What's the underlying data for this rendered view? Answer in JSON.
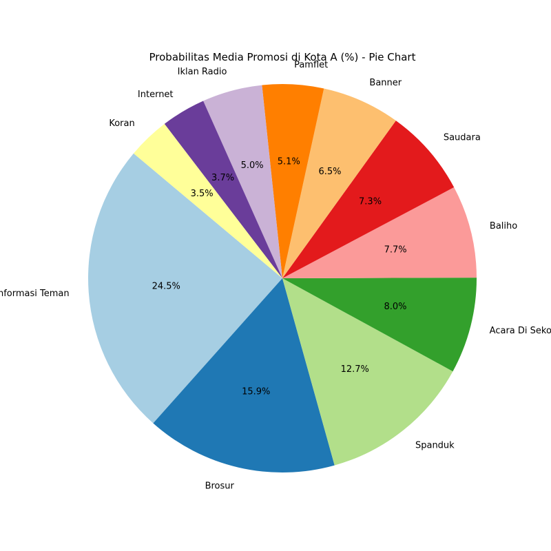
{
  "chart_data": {
    "type": "pie",
    "title": "Probabilitas Media Promosi di Kota A (%) - Pie Chart",
    "start_angle_deg": 140,
    "direction": "counterclockwise",
    "slices": [
      {
        "label": "Informasi Teman",
        "value": 24.5,
        "pct_text": "24.5%",
        "color": "#a6cee3"
      },
      {
        "label": "Brosur",
        "value": 15.9,
        "pct_text": "15.9%",
        "color": "#1f78b4"
      },
      {
        "label": "Spanduk",
        "value": 12.7,
        "pct_text": "12.7%",
        "color": "#b2df8a"
      },
      {
        "label": "Acara Di Sekolah",
        "value": 8.0,
        "pct_text": "8.0%",
        "color": "#33a02c"
      },
      {
        "label": "Baliho",
        "value": 7.7,
        "pct_text": "7.7%",
        "color": "#fb9a99"
      },
      {
        "label": "Saudara",
        "value": 7.3,
        "pct_text": "7.3%",
        "color": "#e31a1c"
      },
      {
        "label": "Banner",
        "value": 6.5,
        "pct_text": "6.5%",
        "color": "#fdbf6f"
      },
      {
        "label": "Pamflet",
        "value": 5.1,
        "pct_text": "5.1%",
        "color": "#ff7f00"
      },
      {
        "label": "Iklan Radio",
        "value": 5.0,
        "pct_text": "5.0%",
        "color": "#cab2d6"
      },
      {
        "label": "Internet",
        "value": 3.7,
        "pct_text": "3.7%",
        "color": "#6a3d9a"
      },
      {
        "label": "Koran",
        "value": 3.5,
        "pct_text": "3.5%",
        "color": "#ffff99"
      }
    ]
  }
}
